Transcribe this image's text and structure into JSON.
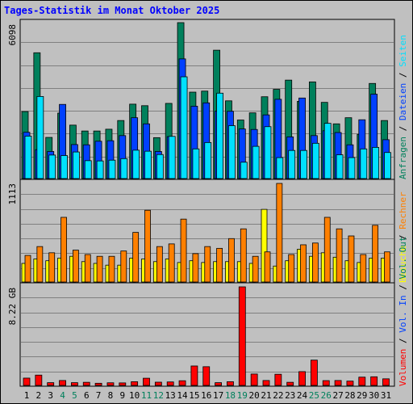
{
  "title": "Tages-Statistik im Monat Oktober 2025",
  "colors": {
    "anfragen": "#00805c",
    "dateien": "#0040ff",
    "seiten": "#00e0ff",
    "besuche": "#ffff00",
    "rechner": "#ff8000",
    "volumen": "#ff0000",
    "volin": "#0040ff",
    "volout": "#00805c",
    "weekend_tick": "#00805c",
    "weekday_tick": "#000000"
  },
  "right_legend": {
    "top": [
      {
        "text": "Anfragen",
        "color": "#00805c"
      },
      {
        "text": "Dateien",
        "color": "#0040ff"
      },
      {
        "text": "Seiten",
        "color": "#00e0ff"
      }
    ],
    "middle": [
      {
        "text": "Besuche",
        "color": "#ffff00"
      },
      {
        "text": "Rechner",
        "color": "#ff8000"
      }
    ],
    "bottom": [
      {
        "text": "Volumen",
        "color": "#ff0000"
      },
      {
        "text": "Vol. In",
        "color": "#0040ff"
      },
      {
        "text": "Vol. Out",
        "color": "#00805c"
      }
    ]
  },
  "chart_data": [
    {
      "type": "bar",
      "panel": "hits",
      "ylabel": "6098",
      "ylim": [
        0,
        6098
      ],
      "categories": [
        "1",
        "2",
        "3",
        "4",
        "5",
        "6",
        "7",
        "8",
        "9",
        "10",
        "11",
        "12",
        "13",
        "14",
        "15",
        "16",
        "17",
        "18",
        "19",
        "20",
        "21",
        "22",
        "23",
        "24",
        "25",
        "26",
        "27",
        "28",
        "29",
        "30",
        "31"
      ],
      "weekend_days": [
        4,
        5,
        11,
        12,
        18,
        19,
        25,
        26
      ],
      "series": [
        {
          "name": "Anfragen",
          "values": [
            2620,
            4920,
            1610,
            2560,
            2090,
            1860,
            1860,
            1930,
            2270,
            2910,
            2850,
            1600,
            2940,
            6098,
            3380,
            3420,
            5020,
            3040,
            2290,
            2570,
            3200,
            3490,
            3850,
            3020,
            3780,
            2980,
            2140,
            2380,
            1730,
            3720,
            2270
          ]
        },
        {
          "name": "Dateien",
          "values": [
            1810,
            1130,
            1060,
            2900,
            1330,
            1320,
            1460,
            1480,
            1680,
            2380,
            2140,
            1060,
            1640,
            4680,
            2830,
            2960,
            2640,
            2630,
            1940,
            1920,
            2490,
            3100,
            1630,
            3150,
            1680,
            1870,
            1800,
            1320,
            2300,
            3300,
            1520
          ]
        },
        {
          "name": "Seiten",
          "values": [
            1660,
            3210,
            920,
            900,
            1040,
            700,
            690,
            720,
            780,
            1110,
            1070,
            940,
            1650,
            3980,
            1160,
            1410,
            3340,
            2070,
            640,
            1260,
            2030,
            820,
            1100,
            1100,
            1380,
            2160,
            930,
            820,
            1160,
            1220,
            1020
          ]
        }
      ]
    },
    {
      "type": "bar",
      "panel": "visits",
      "ylabel": "1113",
      "ylim": [
        0,
        1113
      ],
      "categories": [
        "1",
        "2",
        "3",
        "4",
        "5",
        "6",
        "7",
        "8",
        "9",
        "10",
        "11",
        "12",
        "13",
        "14",
        "15",
        "16",
        "17",
        "18",
        "19",
        "20",
        "21",
        "22",
        "23",
        "24",
        "25",
        "26",
        "27",
        "28",
        "29",
        "30",
        "31"
      ],
      "series": [
        {
          "name": "Besuche",
          "values": [
            210,
            260,
            240,
            270,
            290,
            230,
            210,
            190,
            190,
            270,
            260,
            230,
            260,
            220,
            240,
            220,
            230,
            230,
            230,
            210,
            820,
            180,
            240,
            370,
            290,
            330,
            280,
            240,
            220,
            270,
            270
          ]
        },
        {
          "name": "Rechner",
          "values": [
            300,
            400,
            330,
            730,
            360,
            310,
            290,
            290,
            350,
            560,
            810,
            400,
            430,
            710,
            320,
            400,
            380,
            490,
            600,
            290,
            340,
            1113,
            310,
            420,
            440,
            730,
            600,
            520,
            310,
            640,
            340
          ]
        }
      ]
    },
    {
      "type": "bar",
      "panel": "volume",
      "ylabel": "8.22 GB",
      "ylim": [
        0,
        8.22
      ],
      "unit": "GB",
      "categories": [
        "1",
        "2",
        "3",
        "4",
        "5",
        "6",
        "7",
        "8",
        "9",
        "10",
        "11",
        "12",
        "13",
        "14",
        "15",
        "16",
        "17",
        "18",
        "19",
        "20",
        "21",
        "22",
        "23",
        "24",
        "25",
        "26",
        "27",
        "28",
        "29",
        "30",
        "31"
      ],
      "series": [
        {
          "name": "Volumen",
          "values": [
            0.61,
            0.86,
            0.23,
            0.41,
            0.23,
            0.26,
            0.18,
            0.22,
            0.21,
            0.31,
            0.6,
            0.27,
            0.29,
            0.39,
            1.62,
            1.56,
            0.23,
            0.31,
            8.22,
            0.95,
            0.41,
            0.93,
            0.26,
            1.15,
            2.11,
            0.4,
            0.41,
            0.36,
            0.69,
            0.72,
            0.55
          ]
        }
      ]
    }
  ]
}
